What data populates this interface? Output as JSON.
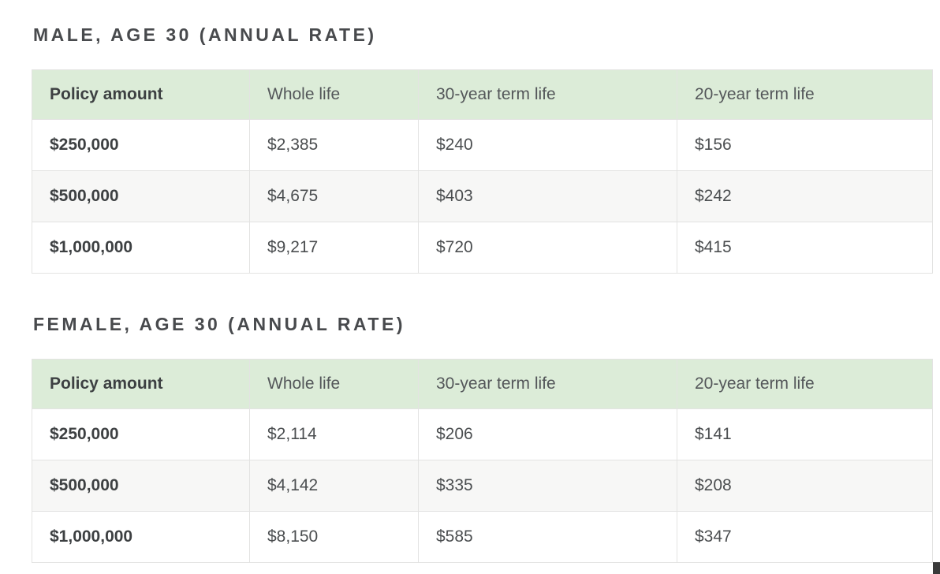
{
  "colors": {
    "header_bg": "#dcecd8",
    "alt_row_bg": "#f7f7f6",
    "border": "#e3e3e2",
    "title_text": "#484a4d",
    "cell_text": "#4b4e50",
    "cursor_artifact": "#3a3a3a",
    "page_bg": "#ffffff"
  },
  "sections": [
    {
      "title": "MALE, AGE 30 (ANNUAL RATE)",
      "columns": [
        "Policy amount",
        "Whole life",
        "30-year term life",
        "20-year term life"
      ],
      "rows": [
        [
          "$250,000",
          "$2,385",
          "$240",
          "$156"
        ],
        [
          "$500,000",
          "$4,675",
          "$403",
          "$242"
        ],
        [
          "$1,000,000",
          "$9,217",
          "$720",
          "$415"
        ]
      ]
    },
    {
      "title": "FEMALE, AGE 30 (ANNUAL RATE)",
      "columns": [
        "Policy amount",
        "Whole life",
        "30-year term life",
        "20-year term life"
      ],
      "rows": [
        [
          "$250,000",
          "$2,114",
          "$206",
          "$141"
        ],
        [
          "$500,000",
          "$4,142",
          "$335",
          "$208"
        ],
        [
          "$1,000,000",
          "$8,150",
          "$585",
          "$347"
        ]
      ]
    }
  ]
}
